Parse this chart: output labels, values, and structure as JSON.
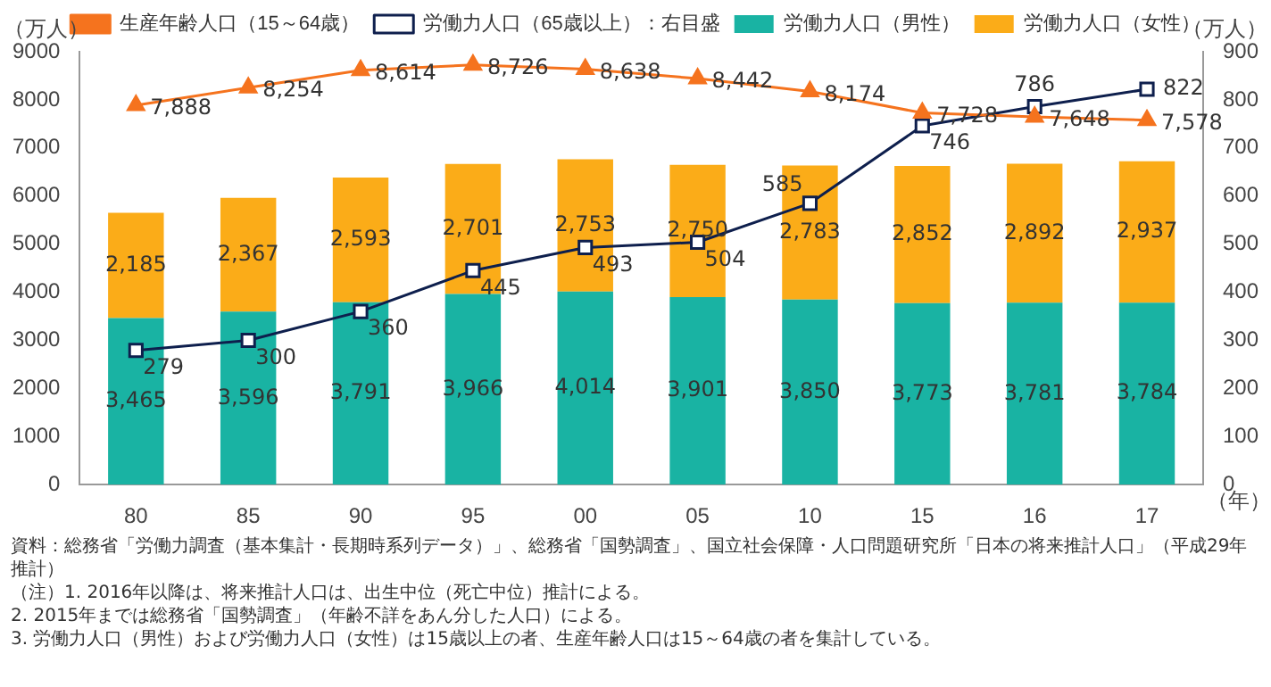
{
  "chart_data": {
    "type": "bar",
    "stacked": true,
    "categories": [
      "80",
      "85",
      "90",
      "95",
      "00",
      "05",
      "10",
      "15",
      "16",
      "17"
    ],
    "xlabel": "（年）",
    "ylabel": "（万人）",
    "y2label": "（万人）",
    "series": [
      {
        "name": "労働力人口（男性）",
        "color": "#19b3a3",
        "values": [
          3465,
          3596,
          3791,
          3966,
          4014,
          3901,
          3850,
          3773,
          3781,
          3784
        ],
        "value_labels": [
          "3,465",
          "3,596",
          "3,791",
          "3,966",
          "4,014",
          "3,901",
          "3,850",
          "3,773",
          "3,781",
          "3,784"
        ]
      },
      {
        "name": "労働力人口（女性）",
        "color": "#fbac18",
        "values": [
          2185,
          2367,
          2593,
          2701,
          2753,
          2750,
          2783,
          2852,
          2892,
          2937
        ],
        "value_labels": [
          "2,185",
          "2,367",
          "2,593",
          "2,701",
          "2,753",
          "2,750",
          "2,783",
          "2,852",
          "2,892",
          "2,937"
        ]
      },
      {
        "name": "生産年齢人口（15～64歳）",
        "type": "line",
        "marker": "triangle",
        "color": "#f5731e",
        "values": [
          7888,
          8254,
          8614,
          8726,
          8638,
          8442,
          8174,
          7728,
          7648,
          7578
        ],
        "value_labels": [
          "7,888",
          "8,254",
          "8,614",
          "8,726",
          "8,638",
          "8,442",
          "8,174",
          "7,728",
          "7,648",
          "7,578"
        ]
      },
      {
        "name": "労働力人口（65歳以上）：右目盛",
        "type": "line",
        "marker": "square",
        "axis": "y2",
        "color": "#0e1f4d",
        "values": [
          279,
          300,
          360,
          445,
          493,
          504,
          585,
          746,
          786,
          822
        ],
        "value_labels": [
          "279",
          "300",
          "360",
          "445",
          "493",
          "504",
          "585",
          "746",
          "786",
          "822"
        ]
      }
    ],
    "ylim": [
      0,
      9000
    ],
    "yticks": [
      0,
      1000,
      2000,
      3000,
      4000,
      5000,
      6000,
      7000,
      8000,
      9000
    ],
    "y2lim": [
      0,
      900
    ],
    "y2ticks": [
      0,
      100,
      200,
      300,
      400,
      500,
      600,
      700,
      800,
      900
    ],
    "grid": false,
    "legend": "top",
    "annotations": [
      "資料：総務省「労働力調査（基本集計・長期時系列データ）」、総務省「国勢調査」、国立社会保障・人口問題研究所「日本の将来推計人口」（平成29年推計）",
      "（注）1. 2016年以降は、将来推計人口は、出生中位（死亡中位）推計による。",
      "2. 2015年までは総務省「国勢調査」（年齢不詳をあん分した人口）による。",
      "3. 労働力人口（男性）および労働力人口（女性）は15歳以上の者、生産年齢人口は15～64歳の者を集計している。"
    ]
  }
}
